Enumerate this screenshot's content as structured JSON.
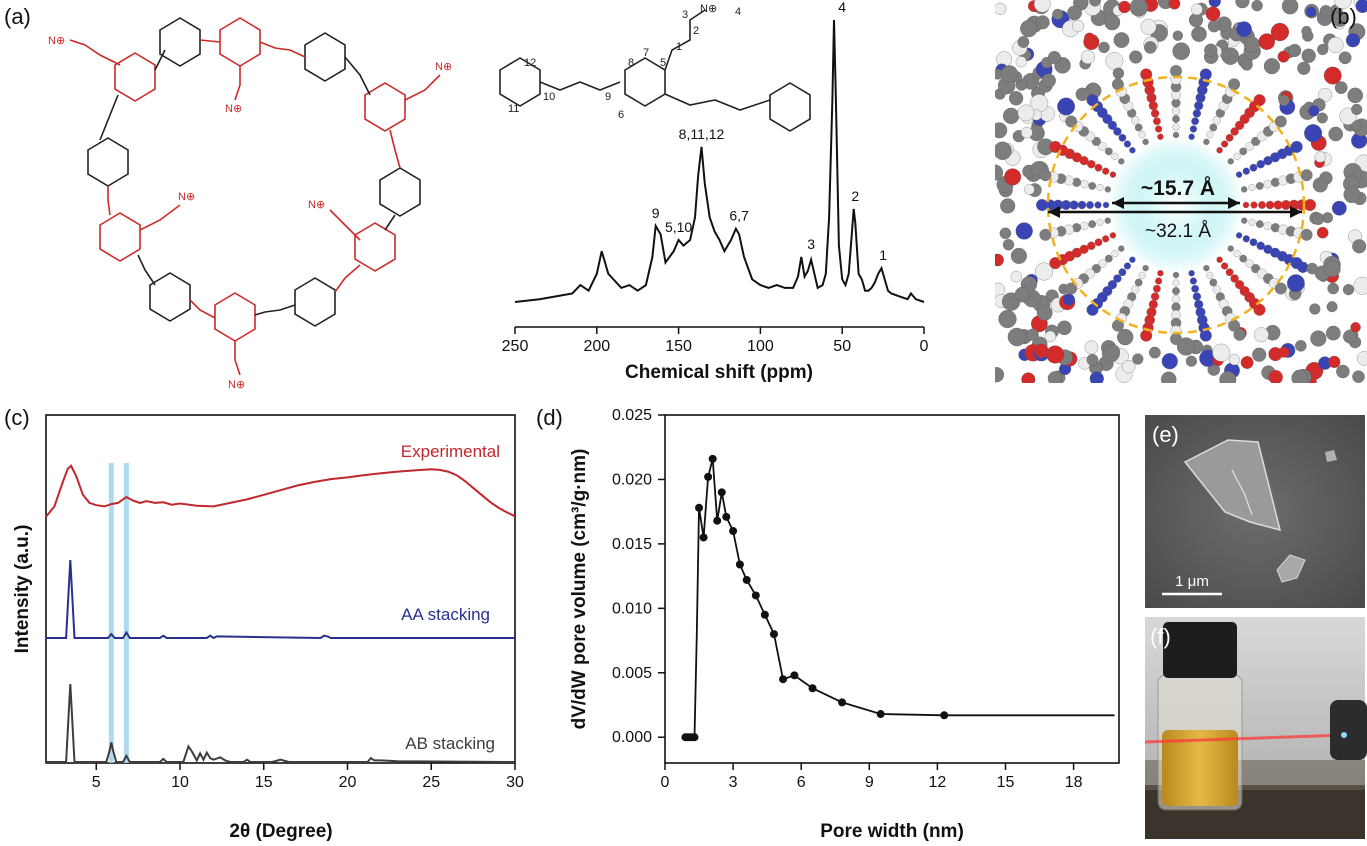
{
  "panels": {
    "a": {
      "label": "(a)"
    },
    "b": {
      "label": "(b)"
    },
    "c": {
      "label": "(c)"
    },
    "d": {
      "label": "(d)"
    },
    "e": {
      "label": "(e)"
    },
    "f": {
      "label": "(f)"
    }
  },
  "structure": {
    "numbers": [
      "1",
      "2",
      "3",
      "4",
      "5",
      "6",
      "7",
      "8",
      "9",
      "10",
      "11",
      "12"
    ]
  },
  "model_b": {
    "inner_diameter": "~15.7 Å",
    "outer_diameter": "~32.1 Å",
    "colors": {
      "carbon": "#7d7d7d",
      "nitrogen": "#3a45b5",
      "oxygen": "#d42a2a",
      "hydrogen": "#ececec",
      "ring": "#f2b21b"
    }
  },
  "sem_e": {
    "scale_bar": "1 μm"
  },
  "chart_data": [
    {
      "id": "nmr",
      "type": "line",
      "xlabel": "Chemical shift (ppm)",
      "ylabel": "",
      "xlim": [
        250,
        0
      ],
      "x_inverted": true,
      "xticks": [
        250,
        200,
        150,
        100,
        50,
        0
      ],
      "series": [
        {
          "x": [
            250,
            235,
            225,
            215,
            210,
            205,
            200,
            197,
            193,
            185,
            180,
            175,
            170,
            166,
            164,
            161,
            158,
            153,
            150,
            147,
            143,
            140,
            138,
            136,
            134,
            131,
            128,
            125,
            122,
            118,
            115,
            113,
            110,
            105,
            100,
            95,
            90,
            85,
            80,
            77,
            75,
            73,
            71,
            69,
            67,
            65,
            62,
            60,
            58,
            56,
            55,
            54,
            52,
            50,
            48,
            46,
            44,
            43,
            42,
            40,
            38,
            36,
            34,
            32,
            30,
            28,
            26,
            25,
            24,
            22,
            20,
            15,
            10,
            8,
            5,
            0
          ],
          "y": [
            0.0,
            0.01,
            0.02,
            0.03,
            0.06,
            0.04,
            0.1,
            0.18,
            0.1,
            0.05,
            0.06,
            0.04,
            0.06,
            0.16,
            0.27,
            0.24,
            0.14,
            0.18,
            0.22,
            0.2,
            0.22,
            0.3,
            0.45,
            0.55,
            0.42,
            0.3,
            0.25,
            0.22,
            0.18,
            0.22,
            0.26,
            0.24,
            0.16,
            0.08,
            0.06,
            0.05,
            0.06,
            0.05,
            0.05,
            0.09,
            0.16,
            0.09,
            0.11,
            0.15,
            0.1,
            0.05,
            0.06,
            0.1,
            0.3,
            0.72,
            1.0,
            0.75,
            0.2,
            0.08,
            0.06,
            0.1,
            0.25,
            0.33,
            0.28,
            0.1,
            0.08,
            0.04,
            0.04,
            0.05,
            0.07,
            0.1,
            0.12,
            0.1,
            0.08,
            0.04,
            0.03,
            0.02,
            0.01,
            0.03,
            0.01,
            0.0
          ]
        }
      ],
      "annotations": [
        {
          "text": "4",
          "x": 50,
          "y": 1.0
        },
        {
          "text": "2",
          "x": 42,
          "y": 0.33
        },
        {
          "text": "1",
          "x": 25,
          "y": 0.12
        },
        {
          "text": "3",
          "x": 69,
          "y": 0.16
        },
        {
          "text": "6,7",
          "x": 113,
          "y": 0.26
        },
        {
          "text": "5,10",
          "x": 150,
          "y": 0.22
        },
        {
          "text": "9",
          "x": 164,
          "y": 0.27
        },
        {
          "text": "8,11,12",
          "x": 136,
          "y": 0.55
        }
      ]
    },
    {
      "id": "pxrd",
      "type": "line",
      "xlabel": "2θ (Degree)",
      "ylabel": "Intensity (a.u.)",
      "xlim": [
        2,
        30
      ],
      "xticks": [
        5,
        10,
        15,
        20,
        25,
        30
      ],
      "highlight_x": [
        5.9,
        6.8
      ],
      "series": [
        {
          "name": "Experimental",
          "color": "#c0282d",
          "offset": 2.0,
          "x": [
            2.0,
            2.5,
            3.0,
            3.3,
            3.5,
            3.8,
            4.2,
            4.6,
            5.0,
            5.5,
            5.9,
            6.3,
            6.8,
            7.2,
            7.6,
            8.0,
            8.5,
            9.0,
            9.5,
            10,
            11,
            12,
            13,
            14,
            15,
            16,
            17,
            18,
            19,
            20,
            21,
            22,
            23,
            24,
            25,
            25.5,
            26,
            26.5,
            27,
            27.5,
            28,
            28.5,
            29,
            29.5,
            30
          ],
          "y": [
            0.02,
            0.2,
            0.62,
            0.85,
            0.9,
            0.72,
            0.4,
            0.26,
            0.22,
            0.2,
            0.24,
            0.26,
            0.36,
            0.3,
            0.26,
            0.29,
            0.26,
            0.27,
            0.23,
            0.25,
            0.21,
            0.2,
            0.26,
            0.32,
            0.4,
            0.48,
            0.56,
            0.62,
            0.67,
            0.7,
            0.74,
            0.77,
            0.8,
            0.82,
            0.84,
            0.83,
            0.8,
            0.74,
            0.64,
            0.52,
            0.4,
            0.28,
            0.18,
            0.1,
            0.03
          ]
        },
        {
          "name": "AA stacking",
          "color": "#27318f",
          "offset": 1.0,
          "x": [
            2.0,
            3.2,
            3.35,
            3.45,
            3.55,
            3.7,
            5.7,
            5.9,
            6.1,
            6.6,
            6.8,
            7.0,
            8.8,
            9.0,
            9.2,
            11.6,
            11.8,
            12.0,
            12.2,
            18.4,
            18.6,
            18.8,
            19.0,
            30
          ],
          "y": [
            0.0,
            0.0,
            0.6,
            1.0,
            0.6,
            0.0,
            0.0,
            0.05,
            0.0,
            0.0,
            0.07,
            0.0,
            0.0,
            0.03,
            0.0,
            0.0,
            0.03,
            0.0,
            0.02,
            0.0,
            0.03,
            0.02,
            0.0,
            0.0
          ]
        },
        {
          "name": "AB stacking",
          "color": "#3d3d3d",
          "offset": 0.0,
          "x": [
            2.0,
            3.2,
            3.35,
            3.45,
            3.55,
            3.7,
            5.6,
            5.8,
            5.9,
            6.0,
            6.2,
            6.6,
            6.8,
            7.0,
            8.8,
            9.0,
            9.2,
            10.2,
            10.5,
            10.7,
            11.0,
            11.2,
            11.4,
            11.6,
            11.8,
            12.0,
            12.4,
            12.7,
            13.0,
            13.8,
            14.0,
            14.2,
            15.5,
            16.0,
            16.5,
            21.2,
            21.4,
            21.6,
            22.0,
            23.0,
            30
          ],
          "y": [
            0.0,
            0.0,
            0.6,
            1.0,
            0.6,
            0.0,
            0.0,
            0.15,
            0.25,
            0.15,
            0.0,
            0.0,
            0.08,
            0.0,
            0.0,
            0.04,
            0.0,
            0.0,
            0.2,
            0.14,
            0.02,
            0.11,
            0.03,
            0.12,
            0.05,
            0.03,
            0.06,
            0.02,
            0.0,
            0.0,
            0.03,
            0.0,
            0.0,
            0.03,
            0.0,
            0.0,
            0.05,
            0.02,
            0.02,
            0.01,
            0.0
          ]
        }
      ]
    },
    {
      "id": "pore",
      "type": "line",
      "xlabel": "Pore width (nm)",
      "ylabel": "dV/dW pore volume (cm³/g·nm)",
      "xlim": [
        0,
        20
      ],
      "ylim": [
        -0.002,
        0.025
      ],
      "xticks": [
        0,
        3,
        6,
        9,
        12,
        15,
        18
      ],
      "yticks": [
        0.0,
        0.005,
        0.01,
        0.015,
        0.02,
        0.025
      ],
      "ytick_labels": [
        "0.000",
        "0.005",
        "0.010",
        "0.015",
        "0.020",
        "0.025"
      ],
      "series": [
        {
          "x": [
            0.9,
            1.0,
            1.1,
            1.2,
            1.3,
            1.4,
            1.5,
            1.7,
            1.9,
            2.1,
            2.3,
            2.5,
            2.7,
            3.0,
            3.3,
            3.6,
            4.0,
            4.4,
            4.8,
            5.2,
            5.7,
            6.5,
            7.8,
            9.5,
            12.3,
            17.4,
            19.8
          ],
          "y": [
            0.0,
            0.0,
            0.0,
            0.0,
            0.0,
            0.008,
            0.0178,
            0.0155,
            0.0202,
            0.0216,
            0.0168,
            0.019,
            0.0171,
            0.016,
            0.0134,
            0.0122,
            0.011,
            0.0095,
            0.008,
            0.0045,
            0.0048,
            0.0038,
            0.0027,
            0.0018,
            0.0017,
            0.0017,
            0.0017
          ],
          "markers": [
            true,
            true,
            true,
            true,
            true,
            false,
            true,
            true,
            true,
            true,
            true,
            true,
            true,
            true,
            true,
            true,
            true,
            true,
            true,
            true,
            true,
            true,
            true,
            true,
            true,
            false,
            false
          ]
        }
      ]
    }
  ]
}
